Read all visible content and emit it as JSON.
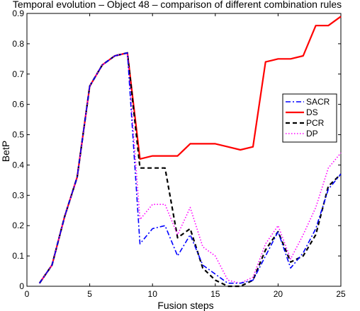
{
  "chart_data": {
    "type": "line",
    "title": "Temporal evolution – Object 48 – comparison of different combination rules",
    "xlabel": "Fusion steps",
    "ylabel": "BetP",
    "xlim": [
      0,
      25
    ],
    "ylim": [
      0,
      0.9
    ],
    "xticks": [
      0,
      5,
      10,
      15,
      20,
      25
    ],
    "yticks": [
      0,
      0.1,
      0.2,
      0.3,
      0.4,
      0.5,
      0.6,
      0.7,
      0.8,
      0.9
    ],
    "xtick_labels": [
      "0",
      "5",
      "10",
      "15",
      "20",
      "25"
    ],
    "ytick_labels": [
      "0",
      "0.1",
      "0.2",
      "0.3",
      "0.4",
      "0.5",
      "0.6",
      "0.7",
      "0.8",
      "0.9"
    ],
    "legend_position": "right, middle",
    "grid": false,
    "x": [
      1,
      2,
      3,
      4,
      5,
      6,
      7,
      8,
      9,
      10,
      11,
      12,
      13,
      14,
      15,
      16,
      17,
      18,
      19,
      20,
      21,
      22,
      23,
      24,
      25
    ],
    "series": [
      {
        "name": "SACR",
        "color": "#0000ff",
        "style": "dashdot",
        "values": [
          0.01,
          0.07,
          0.23,
          0.36,
          0.66,
          0.73,
          0.76,
          0.77,
          0.14,
          0.19,
          0.2,
          0.1,
          0.17,
          0.07,
          0.04,
          0.01,
          0.01,
          0.02,
          0.1,
          0.18,
          0.06,
          0.11,
          0.19,
          0.32,
          0.37
        ]
      },
      {
        "name": "DS",
        "color": "#ff0000",
        "style": "solid",
        "values": [
          0.01,
          0.07,
          0.23,
          0.36,
          0.66,
          0.73,
          0.76,
          0.77,
          0.42,
          0.43,
          0.43,
          0.43,
          0.47,
          0.47,
          0.47,
          0.46,
          0.45,
          0.46,
          0.74,
          0.75,
          0.75,
          0.76,
          0.86,
          0.86,
          0.89
        ]
      },
      {
        "name": "PCR",
        "color": "#000000",
        "style": "dashed",
        "values": [
          0.01,
          0.07,
          0.23,
          0.36,
          0.66,
          0.73,
          0.76,
          0.77,
          0.39,
          0.39,
          0.39,
          0.16,
          0.19,
          0.06,
          0.02,
          0.0,
          0.0,
          0.02,
          0.12,
          0.18,
          0.08,
          0.1,
          0.17,
          0.33,
          0.37
        ]
      },
      {
        "name": "DP",
        "color": "#ff00ff",
        "style": "dotted",
        "values": [
          0.01,
          0.07,
          0.23,
          0.36,
          0.66,
          0.73,
          0.76,
          0.77,
          0.22,
          0.27,
          0.27,
          0.17,
          0.26,
          0.13,
          0.1,
          0.02,
          0.01,
          0.03,
          0.14,
          0.2,
          0.09,
          0.17,
          0.26,
          0.39,
          0.44
        ]
      }
    ]
  }
}
